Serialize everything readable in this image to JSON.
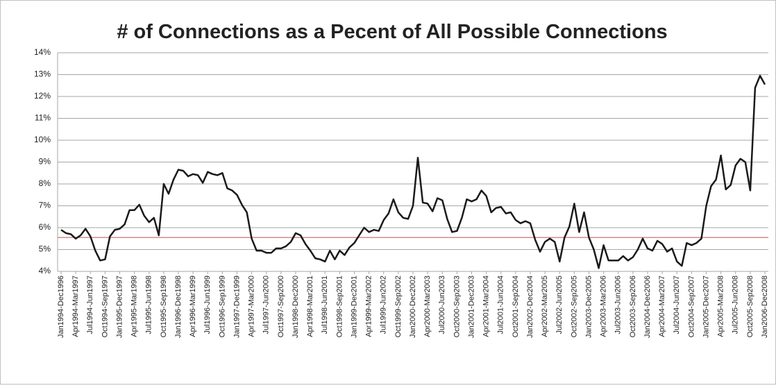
{
  "chart_data": {
    "type": "line",
    "title": "# of Connections as a Pecent of All Possible Connections",
    "categories": [
      "Jan1994-Dec1996",
      null,
      null,
      "Apr1994-Mar1997",
      null,
      null,
      "Jul1994-Jun1997",
      null,
      null,
      "Oct1994-Sep1997",
      null,
      null,
      "Jan1995-Dec1997",
      null,
      null,
      "Apr1995-Mar1998",
      null,
      null,
      "Jul1995-Jun1998",
      null,
      null,
      "Oct1995-Sep1998",
      null,
      null,
      "Jan1996-Dec1998",
      null,
      null,
      "Apr1996-Mar1999",
      null,
      null,
      "Jul1996-Jun1999",
      null,
      null,
      "Oct1996-Sep1999",
      null,
      null,
      "Jan1997-Dec1999",
      null,
      null,
      "Apr1997-Mar2000",
      null,
      null,
      "Jul1997-Jun2000",
      null,
      null,
      "Oct1997-Sep2000",
      null,
      null,
      "Jan1998-Dec2000",
      null,
      null,
      "Apr1998-Mar2001",
      null,
      null,
      "Jul1998-Jun2001",
      null,
      null,
      "Oct1998-Sep2001",
      null,
      null,
      "Jan1999-Dec2001",
      null,
      null,
      "Apr1999-Mar2002",
      null,
      null,
      "Jul1999-Jun2002",
      null,
      null,
      "Oct1999-Sep2002",
      null,
      null,
      "Jan2000-Dec2002",
      null,
      null,
      "Apr2000-Mar2003",
      null,
      null,
      "Jul2000-Jun2003",
      null,
      null,
      "Oct2000-Sep2003",
      null,
      null,
      "Jan2001-Dec2003",
      null,
      null,
      "Apr2001-Mar2004",
      null,
      null,
      "Jul2001-Jun2004",
      null,
      null,
      "Oct2001-Sep2004",
      null,
      null,
      "Jan2002-Dec2004",
      null,
      null,
      "Apr2002-Mar2005",
      null,
      null,
      "Jul2002-Jun2005",
      null,
      null,
      "Oct2002-Sep2005",
      null,
      null,
      "Jan2003-Dec2005",
      null,
      null,
      "Apr2003-Mar2006",
      null,
      null,
      "Jul2003-Jun2006",
      null,
      null,
      "Oct2003-Sep2006",
      null,
      null,
      "Jan2004-Dec2006",
      null,
      null,
      "Apr2004-Mar2007",
      null,
      null,
      "Jul2004-Jun2007",
      null,
      null,
      "Oct2004-Sep2007",
      null,
      null,
      "Jan2005-Dec2007",
      null,
      null,
      "Apr2005-Mar2008",
      null,
      null,
      "Jul2005-Jun2008",
      null,
      null,
      "Oct2005-Sep2008",
      null,
      null,
      "Jan2006-Dec2008"
    ],
    "values": [
      5.9,
      5.75,
      5.7,
      5.5,
      5.65,
      5.95,
      5.6,
      4.95,
      4.5,
      4.55,
      5.6,
      5.9,
      5.95,
      6.15,
      6.8,
      6.8,
      7.05,
      6.55,
      6.25,
      6.45,
      5.65,
      8.0,
      7.55,
      8.2,
      8.65,
      8.6,
      8.35,
      8.45,
      8.4,
      8.05,
      8.55,
      8.45,
      8.4,
      8.5,
      7.8,
      7.7,
      7.5,
      7.05,
      6.7,
      5.5,
      4.95,
      4.95,
      4.85,
      4.85,
      5.05,
      5.05,
      5.15,
      5.35,
      5.75,
      5.65,
      5.25,
      4.95,
      4.6,
      4.55,
      4.45,
      4.95,
      4.55,
      4.95,
      4.75,
      5.1,
      5.3,
      5.65,
      6.0,
      5.8,
      5.9,
      5.85,
      6.35,
      6.65,
      7.3,
      6.7,
      6.45,
      6.4,
      7.0,
      9.2,
      7.15,
      7.1,
      6.75,
      7.35,
      7.25,
      6.4,
      5.8,
      5.85,
      6.45,
      7.3,
      7.2,
      7.3,
      7.7,
      7.45,
      6.7,
      6.9,
      6.95,
      6.65,
      6.7,
      6.35,
      6.2,
      6.3,
      6.2,
      5.45,
      4.9,
      5.35,
      5.5,
      5.35,
      4.45,
      5.55,
      6.05,
      7.1,
      5.8,
      6.7,
      5.55,
      5.0,
      4.15,
      5.2,
      4.5,
      4.5,
      4.5,
      4.7,
      4.5,
      4.65,
      5.0,
      5.5,
      5.05,
      4.95,
      5.4,
      5.25,
      4.9,
      5.05,
      4.45,
      4.25,
      5.3,
      5.2,
      5.3,
      5.5,
      7.0,
      7.9,
      8.2,
      9.3,
      7.75,
      7.95,
      8.85,
      9.15,
      9.0,
      7.7,
      12.4,
      12.95,
      12.55
    ],
    "color": "#1a1a1a",
    "reference_line": 5.55,
    "reference_color": "#c0504d",
    "ylim": [
      4,
      14
    ],
    "yticks": [
      {
        "value": 4,
        "label": "4%"
      },
      {
        "value": 5,
        "label": "5%"
      },
      {
        "value": 6,
        "label": "6%"
      },
      {
        "value": 7,
        "label": "7%"
      },
      {
        "value": 8,
        "label": "8%"
      },
      {
        "value": 9,
        "label": "9%"
      },
      {
        "value": 10,
        "label": "10%"
      },
      {
        "value": 11,
        "label": "11%"
      },
      {
        "value": 12,
        "label": "12%"
      },
      {
        "value": 13,
        "label": "13%"
      },
      {
        "value": 14,
        "label": "14%"
      }
    ],
    "grid": true
  }
}
